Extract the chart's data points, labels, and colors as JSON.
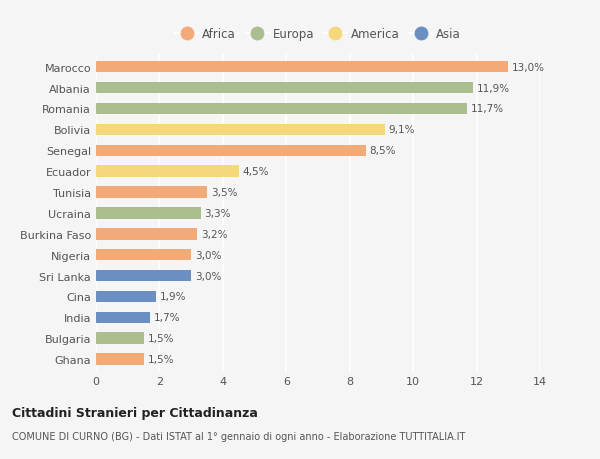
{
  "countries": [
    "Marocco",
    "Albania",
    "Romania",
    "Bolivia",
    "Senegal",
    "Ecuador",
    "Tunisia",
    "Ucraina",
    "Burkina Faso",
    "Nigeria",
    "Sri Lanka",
    "Cina",
    "India",
    "Bulgaria",
    "Ghana"
  ],
  "values": [
    13.0,
    11.9,
    11.7,
    9.1,
    8.5,
    4.5,
    3.5,
    3.3,
    3.2,
    3.0,
    3.0,
    1.9,
    1.7,
    1.5,
    1.5
  ],
  "labels": [
    "13,0%",
    "11,9%",
    "11,7%",
    "9,1%",
    "8,5%",
    "4,5%",
    "3,5%",
    "3,3%",
    "3,2%",
    "3,0%",
    "3,0%",
    "1,9%",
    "1,7%",
    "1,5%",
    "1,5%"
  ],
  "continents": [
    "Africa",
    "Europa",
    "Europa",
    "America",
    "Africa",
    "America",
    "Africa",
    "Europa",
    "Africa",
    "Africa",
    "Asia",
    "Asia",
    "Asia",
    "Europa",
    "Africa"
  ],
  "colors": {
    "Africa": "#F2AA78",
    "Europa": "#ABBE8F",
    "America": "#F5D87C",
    "Asia": "#6B8FC0"
  },
  "legend_order": [
    "Africa",
    "Europa",
    "America",
    "Asia"
  ],
  "xlim": [
    0,
    14
  ],
  "xticks": [
    0,
    2,
    4,
    6,
    8,
    10,
    12,
    14
  ],
  "title": "Cittadini Stranieri per Cittadinanza",
  "subtitle": "COMUNE DI CURNO (BG) - Dati ISTAT al 1° gennaio di ogni anno - Elaborazione TUTTITALIA.IT",
  "bg_color": "#f5f5f5",
  "bar_height": 0.55,
  "grid_color": "#ffffff",
  "label_fontsize": 7.5,
  "ytick_fontsize": 8,
  "xtick_fontsize": 8,
  "title_fontsize": 9,
  "subtitle_fontsize": 7
}
